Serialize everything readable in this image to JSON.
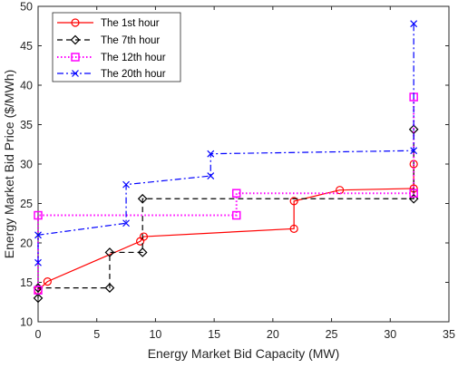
{
  "colors": {
    "background": "#ffffff",
    "axis": "#262626",
    "red": "#ff0000",
    "black": "#000000",
    "magenta": "#ff00ff",
    "blue": "#0000ff"
  },
  "chart_data": {
    "type": "line",
    "title": "",
    "xlabel": "Energy Market Bid Capacity (MW)",
    "ylabel": "Energy Market Bid Price ($/MWh)",
    "xlim": [
      0,
      35
    ],
    "ylim": [
      10,
      50
    ],
    "xticks": [
      0,
      5,
      10,
      15,
      20,
      25,
      30,
      35
    ],
    "yticks": [
      10,
      15,
      20,
      25,
      30,
      35,
      40,
      45,
      50
    ],
    "grid": false,
    "legend_position": "top-left",
    "series": [
      {
        "name": "The 1st hour",
        "color": "#ff0000",
        "line_style": "solid",
        "marker": "circle",
        "x": [
          0,
          0.8,
          8.7,
          9.0,
          21.8,
          21.8,
          25.7,
          32.0,
          32.0
        ],
        "y": [
          14.0,
          15.1,
          20.2,
          20.8,
          21.8,
          25.3,
          26.7,
          26.9,
          30.0
        ]
      },
      {
        "name": "The 7th hour",
        "color": "#000000",
        "line_style": "dashed",
        "marker": "diamond",
        "x": [
          0,
          0,
          6.1,
          6.1,
          8.9,
          8.9,
          32.0,
          32.0
        ],
        "y": [
          13.0,
          14.3,
          14.3,
          18.8,
          18.8,
          25.6,
          25.6,
          34.4
        ]
      },
      {
        "name": "The 12th hour",
        "color": "#ff00ff",
        "line_style": "dotted",
        "marker": "square",
        "x": [
          0,
          0,
          16.9,
          16.9,
          32.0,
          32.0
        ],
        "y": [
          14.0,
          23.5,
          23.5,
          26.3,
          26.3,
          38.5
        ]
      },
      {
        "name": "The 20th hour",
        "color": "#0000ff",
        "line_style": "dashdot",
        "marker": "x",
        "x": [
          0,
          0,
          7.5,
          7.5,
          14.7,
          14.7,
          32.0,
          32.0
        ],
        "y": [
          17.5,
          21.0,
          22.5,
          27.4,
          28.5,
          31.3,
          31.7,
          47.8
        ]
      }
    ]
  }
}
